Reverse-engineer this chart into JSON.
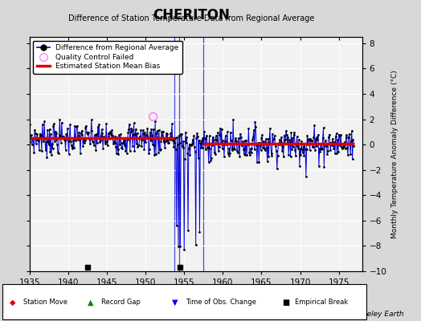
{
  "title": "CHERITON",
  "subtitle": "Difference of Station Temperature Data from Regional Average",
  "ylabel": "Monthly Temperature Anomaly Difference (°C)",
  "xlim": [
    1935,
    1978
  ],
  "ylim": [
    -10,
    8.5
  ],
  "yticks": [
    -10,
    -8,
    -6,
    -4,
    -2,
    0,
    2,
    4,
    6,
    8
  ],
  "xticks": [
    1935,
    1940,
    1945,
    1950,
    1955,
    1960,
    1965,
    1970,
    1975
  ],
  "background_color": "#d8d8d8",
  "plot_bg_color": "#f2f2f2",
  "grid_color": "#ffffff",
  "line_color": "#0000dd",
  "dot_color": "#000000",
  "bias_color": "#dd0000",
  "empirical_break_years": [
    1942.5,
    1954.5
  ],
  "obs_change_years": [
    1953.75,
    1954.33,
    1957.5
  ],
  "bias_x1": 1935.0,
  "bias_x2": 1953.75,
  "bias_y1": 0.5,
  "bias_x3": 1957.5,
  "bias_x4": 1977.0,
  "bias_y2": 0.1,
  "qc_x": [
    1951.0
  ],
  "qc_y": [
    2.2
  ],
  "seed": 7
}
